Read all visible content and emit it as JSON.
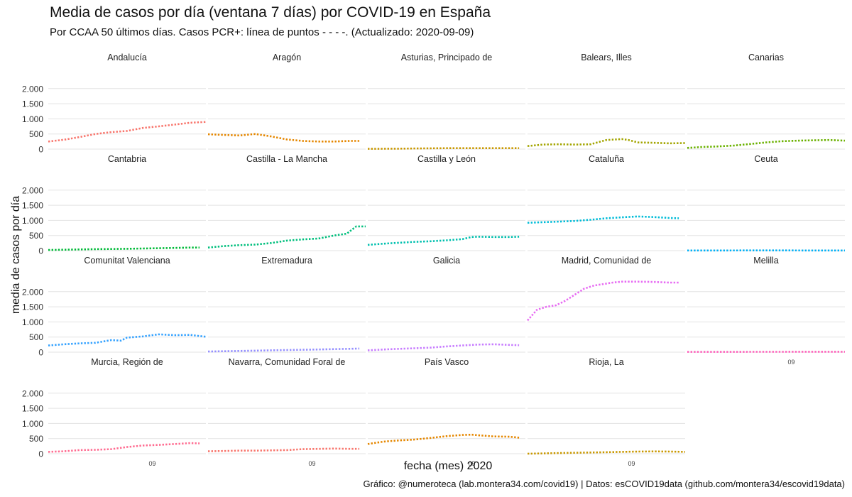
{
  "chart_data": {
    "type": "line",
    "title": "Media de casos por día (ventana 7 días) por COVID-19 en España",
    "subtitle": "Por CCAA 50 últimos días. Casos PCR+: línea de puntos - - - -. (Actualizado: 2020-09-09)",
    "xlabel": "fecha (mes) 2020",
    "ylabel": "media de casos por día",
    "caption": "Gráfico: @numeroteca (lab.montera34.com/covid19) | Datos: esCOVID19data (github.com/montera34/escovid19data)",
    "ylim": [
      0,
      2300
    ],
    "yticks": [
      0,
      500,
      1000,
      1500,
      2000
    ],
    "ytick_labels": [
      "0",
      "500",
      "1.000",
      "1.500",
      "2.000"
    ],
    "xtick_label": "09",
    "grid": true,
    "legend": "none",
    "panels": [
      {
        "name": "Andalucía",
        "color": "#F8766D",
        "x": [
          0,
          5,
          10,
          15,
          20,
          25,
          30,
          35,
          40,
          45,
          50
        ],
        "values": [
          250,
          310,
          400,
          500,
          560,
          600,
          700,
          750,
          810,
          870,
          900
        ]
      },
      {
        "name": "Aragón",
        "color": "#E58700",
        "x": [
          0,
          5,
          10,
          15,
          20,
          25,
          30,
          35,
          40,
          45,
          48
        ],
        "values": [
          490,
          470,
          450,
          500,
          420,
          320,
          270,
          250,
          250,
          270,
          270
        ]
      },
      {
        "name": "Asturias, Principado de",
        "color": "#C99800",
        "x": [
          0,
          5,
          10,
          15,
          20,
          25,
          30,
          35,
          40,
          45,
          48
        ],
        "values": [
          10,
          12,
          15,
          20,
          25,
          30,
          30,
          30,
          30,
          30,
          30
        ]
      },
      {
        "name": "Balears, Illes",
        "color": "#A3A500",
        "x": [
          0,
          5,
          10,
          15,
          20,
          25,
          30,
          32,
          35,
          40,
          45,
          50
        ],
        "values": [
          100,
          150,
          160,
          150,
          160,
          300,
          330,
          300,
          220,
          210,
          190,
          200
        ]
      },
      {
        "name": "Canarias",
        "color": "#6BB100",
        "x": [
          0,
          5,
          10,
          15,
          20,
          25,
          30,
          35,
          40,
          45,
          50
        ],
        "values": [
          40,
          70,
          90,
          120,
          170,
          220,
          260,
          280,
          290,
          300,
          280
        ]
      },
      {
        "name": "Cantabria",
        "color": "#00BA38",
        "x": [
          0,
          5,
          10,
          15,
          20,
          25,
          30,
          35,
          40,
          45,
          48
        ],
        "values": [
          20,
          30,
          40,
          50,
          55,
          60,
          70,
          80,
          90,
          100,
          100
        ]
      },
      {
        "name": "Castilla - La Mancha",
        "color": "#00BF7D",
        "x": [
          0,
          5,
          10,
          15,
          20,
          25,
          30,
          35,
          40,
          44,
          47,
          50
        ],
        "values": [
          100,
          150,
          180,
          200,
          250,
          330,
          370,
          400,
          500,
          560,
          800,
          800
        ]
      },
      {
        "name": "Castilla y León",
        "color": "#00C0AF",
        "x": [
          0,
          5,
          10,
          15,
          20,
          25,
          30,
          33,
          35,
          40,
          45,
          48
        ],
        "values": [
          190,
          230,
          260,
          290,
          310,
          340,
          380,
          450,
          460,
          450,
          450,
          460
        ]
      },
      {
        "name": "Cataluña",
        "color": "#00BCD8",
        "x": [
          0,
          5,
          10,
          15,
          20,
          25,
          30,
          35,
          40,
          45,
          48
        ],
        "values": [
          920,
          940,
          960,
          980,
          1020,
          1070,
          1100,
          1130,
          1110,
          1080,
          1070
        ]
      },
      {
        "name": "Ceuta",
        "color": "#00B0F6",
        "x": [
          0,
          10,
          20,
          30,
          40,
          50
        ],
        "values": [
          5,
          5,
          6,
          6,
          5,
          5
        ]
      },
      {
        "name": "Comunitat Valenciana",
        "color": "#35A2FF",
        "x": [
          0,
          5,
          10,
          15,
          20,
          23,
          25,
          30,
          35,
          40,
          45,
          50
        ],
        "values": [
          220,
          260,
          290,
          310,
          400,
          380,
          480,
          520,
          590,
          560,
          570,
          510
        ]
      },
      {
        "name": "Extremadura",
        "color": "#9590FF",
        "x": [
          0,
          5,
          10,
          15,
          20,
          25,
          30,
          35,
          40,
          45,
          48
        ],
        "values": [
          20,
          30,
          40,
          50,
          60,
          70,
          80,
          90,
          100,
          110,
          120
        ]
      },
      {
        "name": "Galicia",
        "color": "#C77CFF",
        "x": [
          0,
          5,
          10,
          15,
          20,
          25,
          30,
          35,
          40,
          45,
          48
        ],
        "values": [
          60,
          90,
          110,
          130,
          150,
          190,
          220,
          250,
          260,
          240,
          230
        ]
      },
      {
        "name": "Madrid, Comunidad de",
        "color": "#E76BF3",
        "x": [
          0,
          3,
          6,
          9,
          12,
          15,
          18,
          21,
          24,
          27,
          30,
          35,
          40,
          45,
          48
        ],
        "values": [
          1050,
          1400,
          1500,
          1550,
          1700,
          1900,
          2100,
          2200,
          2250,
          2300,
          2330,
          2330,
          2320,
          2300,
          2300
        ]
      },
      {
        "name": "Melilla",
        "color": "#FF62BC",
        "x": [
          0,
          10,
          20,
          30,
          40,
          50
        ],
        "values": [
          10,
          10,
          12,
          12,
          15,
          15
        ]
      },
      {
        "name": "Murcia, Región de",
        "color": "#FF6C91",
        "x": [
          0,
          5,
          10,
          15,
          20,
          25,
          30,
          35,
          40,
          45,
          48
        ],
        "values": [
          60,
          80,
          120,
          130,
          150,
          220,
          270,
          290,
          320,
          350,
          340
        ]
      },
      {
        "name": "Navarra, Comunidad Foral de",
        "color": "#F8766D",
        "x": [
          0,
          5,
          10,
          15,
          20,
          25,
          30,
          35,
          40,
          45,
          48
        ],
        "values": [
          80,
          90,
          100,
          100,
          110,
          120,
          150,
          160,
          170,
          160,
          160
        ]
      },
      {
        "name": "País Vasco",
        "color": "#E58700",
        "x": [
          0,
          5,
          10,
          15,
          20,
          25,
          30,
          33,
          35,
          40,
          45,
          48
        ],
        "values": [
          320,
          400,
          440,
          470,
          520,
          580,
          620,
          630,
          610,
          570,
          560,
          530
        ]
      },
      {
        "name": "Rioja, La",
        "color": "#C99800",
        "x": [
          0,
          5,
          10,
          15,
          20,
          25,
          30,
          35,
          40,
          45,
          50
        ],
        "values": [
          0,
          10,
          20,
          30,
          40,
          50,
          60,
          70,
          75,
          70,
          60
        ]
      }
    ]
  }
}
